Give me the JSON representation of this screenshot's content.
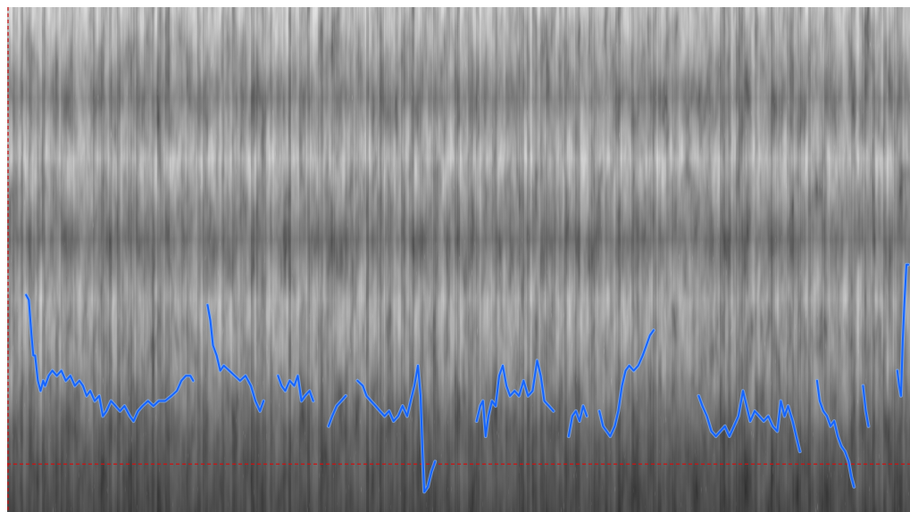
{
  "chart_data": {
    "type": "line",
    "title": "",
    "xlabel": "",
    "ylabel": "",
    "background": "spectrogram",
    "grid": false,
    "legend": "none",
    "x_range": [
      0,
      1
    ],
    "y_range": [
      0,
      1
    ],
    "colors": {
      "pitch_line": "#1565ff",
      "pitch_line_glow": "#7fb0ff",
      "cursor_line": "#d01010",
      "spectrogram_dark": "#1a1a1a",
      "spectrogram_light": "#f4f4f4"
    },
    "reference_lines": [
      {
        "orientation": "horizontal",
        "value": 0.095,
        "style": "dashed"
      },
      {
        "orientation": "vertical",
        "value": 0.0,
        "style": "dashed"
      }
    ],
    "series": [
      {
        "points": [
          [
            0.021,
            0.43
          ],
          [
            0.024,
            0.42
          ],
          [
            0.027,
            0.35
          ],
          [
            0.029,
            0.31
          ],
          [
            0.031,
            0.31
          ],
          [
            0.034,
            0.26
          ],
          [
            0.037,
            0.24
          ],
          [
            0.04,
            0.26
          ],
          [
            0.042,
            0.25
          ],
          [
            0.046,
            0.27
          ],
          [
            0.05,
            0.28
          ],
          [
            0.055,
            0.27
          ],
          [
            0.06,
            0.28
          ],
          [
            0.065,
            0.26
          ],
          [
            0.07,
            0.27
          ],
          [
            0.075,
            0.25
          ],
          [
            0.08,
            0.26
          ],
          [
            0.084,
            0.25
          ],
          [
            0.088,
            0.23
          ],
          [
            0.092,
            0.24
          ],
          [
            0.097,
            0.22
          ],
          [
            0.102,
            0.23
          ],
          [
            0.106,
            0.19
          ],
          [
            0.11,
            0.2
          ],
          [
            0.115,
            0.22
          ],
          [
            0.12,
            0.21
          ],
          [
            0.125,
            0.2
          ],
          [
            0.13,
            0.21
          ],
          [
            0.136,
            0.19
          ],
          [
            0.14,
            0.18
          ],
          [
            0.145,
            0.2
          ],
          [
            0.15,
            0.21
          ],
          [
            0.156,
            0.22
          ],
          [
            0.162,
            0.21
          ],
          [
            0.168,
            0.22
          ],
          [
            0.175,
            0.22
          ],
          [
            0.182,
            0.23
          ],
          [
            0.188,
            0.24
          ],
          [
            0.193,
            0.26
          ],
          [
            0.198,
            0.27
          ],
          [
            0.203,
            0.27
          ],
          [
            0.206,
            0.26
          ]
        ]
      },
      {
        "points": [
          [
            0.222,
            0.41
          ],
          [
            0.225,
            0.38
          ],
          [
            0.228,
            0.33
          ],
          [
            0.232,
            0.31
          ],
          [
            0.236,
            0.28
          ],
          [
            0.24,
            0.29
          ],
          [
            0.246,
            0.28
          ],
          [
            0.252,
            0.27
          ],
          [
            0.258,
            0.26
          ],
          [
            0.264,
            0.27
          ],
          [
            0.27,
            0.25
          ],
          [
            0.275,
            0.22
          ],
          [
            0.28,
            0.2
          ],
          [
            0.284,
            0.22
          ]
        ]
      },
      {
        "points": [
          [
            0.3,
            0.27
          ],
          [
            0.304,
            0.25
          ],
          [
            0.308,
            0.24
          ],
          [
            0.313,
            0.26
          ],
          [
            0.318,
            0.25
          ],
          [
            0.322,
            0.27
          ],
          [
            0.326,
            0.22
          ],
          [
            0.33,
            0.23
          ],
          [
            0.335,
            0.24
          ],
          [
            0.339,
            0.22
          ]
        ]
      },
      {
        "points": [
          [
            0.356,
            0.17
          ],
          [
            0.36,
            0.19
          ],
          [
            0.365,
            0.21
          ],
          [
            0.37,
            0.22
          ],
          [
            0.375,
            0.23
          ]
        ]
      },
      {
        "points": [
          [
            0.388,
            0.26
          ],
          [
            0.394,
            0.25
          ],
          [
            0.398,
            0.23
          ],
          [
            0.403,
            0.22
          ],
          [
            0.408,
            0.21
          ],
          [
            0.413,
            0.2
          ],
          [
            0.418,
            0.19
          ],
          [
            0.423,
            0.2
          ],
          [
            0.428,
            0.18
          ],
          [
            0.433,
            0.19
          ],
          [
            0.438,
            0.21
          ],
          [
            0.443,
            0.19
          ],
          [
            0.447,
            0.22
          ],
          [
            0.451,
            0.25
          ],
          [
            0.455,
            0.29
          ],
          [
            0.458,
            0.23
          ],
          [
            0.46,
            0.12
          ],
          [
            0.462,
            0.04
          ],
          [
            0.466,
            0.05
          ],
          [
            0.47,
            0.08
          ],
          [
            0.474,
            0.1
          ]
        ]
      },
      {
        "points": [
          [
            0.52,
            0.18
          ],
          [
            0.524,
            0.21
          ],
          [
            0.527,
            0.22
          ],
          [
            0.53,
            0.15
          ],
          [
            0.533,
            0.19
          ],
          [
            0.537,
            0.22
          ],
          [
            0.541,
            0.21
          ],
          [
            0.545,
            0.27
          ],
          [
            0.549,
            0.29
          ],
          [
            0.553,
            0.25
          ],
          [
            0.557,
            0.23
          ],
          [
            0.562,
            0.24
          ],
          [
            0.567,
            0.23
          ],
          [
            0.572,
            0.26
          ],
          [
            0.577,
            0.23
          ],
          [
            0.582,
            0.24
          ],
          [
            0.587,
            0.3
          ],
          [
            0.591,
            0.27
          ],
          [
            0.595,
            0.22
          ],
          [
            0.6,
            0.21
          ],
          [
            0.605,
            0.2
          ]
        ]
      },
      {
        "points": [
          [
            0.622,
            0.15
          ],
          [
            0.626,
            0.19
          ],
          [
            0.63,
            0.2
          ],
          [
            0.634,
            0.18
          ],
          [
            0.638,
            0.21
          ],
          [
            0.642,
            0.19
          ]
        ]
      },
      {
        "points": [
          [
            0.656,
            0.2
          ],
          [
            0.66,
            0.17
          ],
          [
            0.664,
            0.16
          ],
          [
            0.668,
            0.15
          ],
          [
            0.673,
            0.17
          ],
          [
            0.677,
            0.2
          ],
          [
            0.681,
            0.25
          ],
          [
            0.685,
            0.28
          ],
          [
            0.689,
            0.29
          ],
          [
            0.694,
            0.28
          ],
          [
            0.699,
            0.29
          ],
          [
            0.704,
            0.31
          ],
          [
            0.708,
            0.33
          ],
          [
            0.712,
            0.35
          ],
          [
            0.716,
            0.36
          ]
        ]
      },
      {
        "points": [
          [
            0.766,
            0.23
          ],
          [
            0.77,
            0.21
          ],
          [
            0.775,
            0.19
          ],
          [
            0.78,
            0.16
          ],
          [
            0.785,
            0.15
          ],
          [
            0.79,
            0.16
          ],
          [
            0.795,
            0.17
          ],
          [
            0.8,
            0.15
          ],
          [
            0.805,
            0.17
          ],
          [
            0.81,
            0.19
          ],
          [
            0.815,
            0.24
          ],
          [
            0.819,
            0.21
          ],
          [
            0.823,
            0.18
          ],
          [
            0.828,
            0.2
          ],
          [
            0.833,
            0.19
          ],
          [
            0.838,
            0.18
          ],
          [
            0.843,
            0.19
          ],
          [
            0.848,
            0.17
          ],
          [
            0.853,
            0.16
          ],
          [
            0.857,
            0.22
          ],
          [
            0.861,
            0.19
          ],
          [
            0.865,
            0.21
          ],
          [
            0.87,
            0.18
          ],
          [
            0.874,
            0.15
          ],
          [
            0.878,
            0.12
          ]
        ]
      },
      {
        "points": [
          [
            0.897,
            0.26
          ],
          [
            0.9,
            0.22
          ],
          [
            0.904,
            0.2
          ],
          [
            0.908,
            0.19
          ],
          [
            0.912,
            0.17
          ],
          [
            0.916,
            0.18
          ],
          [
            0.92,
            0.15
          ],
          [
            0.924,
            0.13
          ],
          [
            0.928,
            0.12
          ],
          [
            0.932,
            0.1
          ],
          [
            0.935,
            0.07
          ],
          [
            0.938,
            0.05
          ]
        ]
      },
      {
        "points": [
          [
            0.948,
            0.25
          ],
          [
            0.951,
            0.2
          ],
          [
            0.954,
            0.17
          ]
        ]
      },
      {
        "points": [
          [
            0.986,
            0.28
          ],
          [
            0.988,
            0.25
          ],
          [
            0.99,
            0.23
          ],
          [
            0.992,
            0.34
          ],
          [
            0.994,
            0.42
          ],
          [
            0.996,
            0.49
          ],
          [
            0.998,
            0.49
          ]
        ]
      }
    ]
  }
}
